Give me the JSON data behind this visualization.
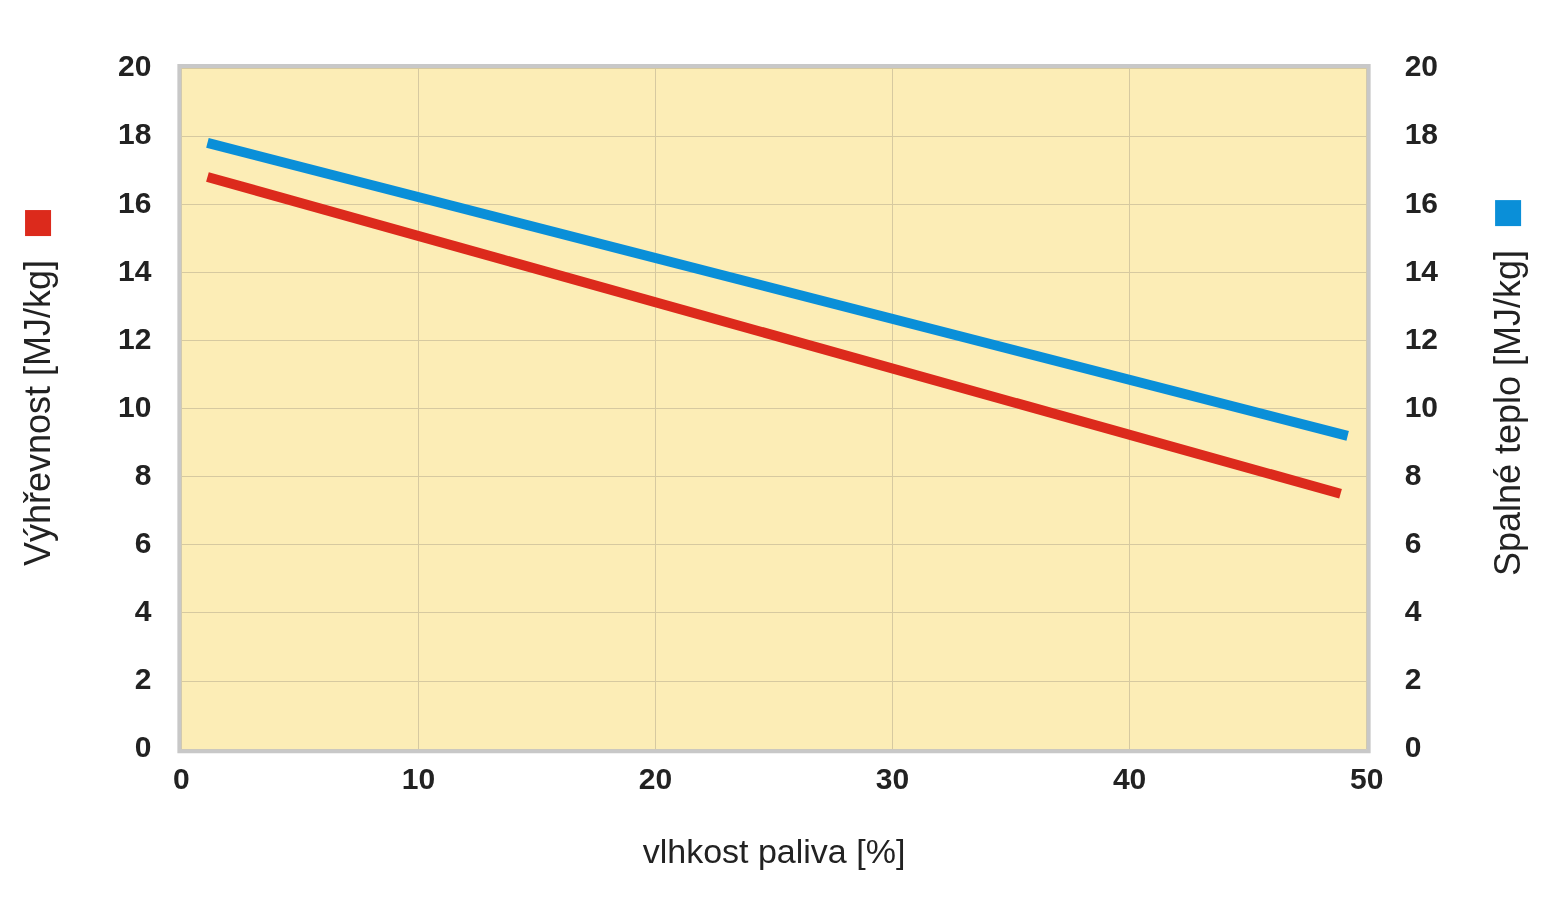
{
  "chart_data": {
    "type": "line",
    "xlabel": "vlhkost paliva [%]",
    "ylabel": "Výhřevnost  [MJ/kg]",
    "y2label": "Spalné teplo [MJ/kg]",
    "x": [
      1.1,
      48.9
    ],
    "series": [
      {
        "color": "#dc2a1c",
        "values": [
          16.8,
          7.5
        ],
        "axis": "y"
      },
      {
        "color": "#0a8fd8",
        "values": [
          17.8,
          9.2
        ],
        "x": [
          1.1,
          49.2
        ],
        "axis": "y2"
      }
    ],
    "xlim": [
      0,
      50
    ],
    "xticks": [
      0,
      10,
      20,
      30,
      40,
      50
    ],
    "ylim": [
      0,
      20
    ],
    "yticks": [
      0,
      2,
      4,
      6,
      8,
      10,
      12,
      14,
      16,
      18,
      20
    ],
    "y2lim": [
      0,
      20
    ],
    "y2ticks": [
      0,
      2,
      4,
      6,
      8,
      10,
      12,
      14,
      16,
      18,
      20
    ],
    "grid": true,
    "marker": "none",
    "line_style": "solid",
    "legend": false
  }
}
